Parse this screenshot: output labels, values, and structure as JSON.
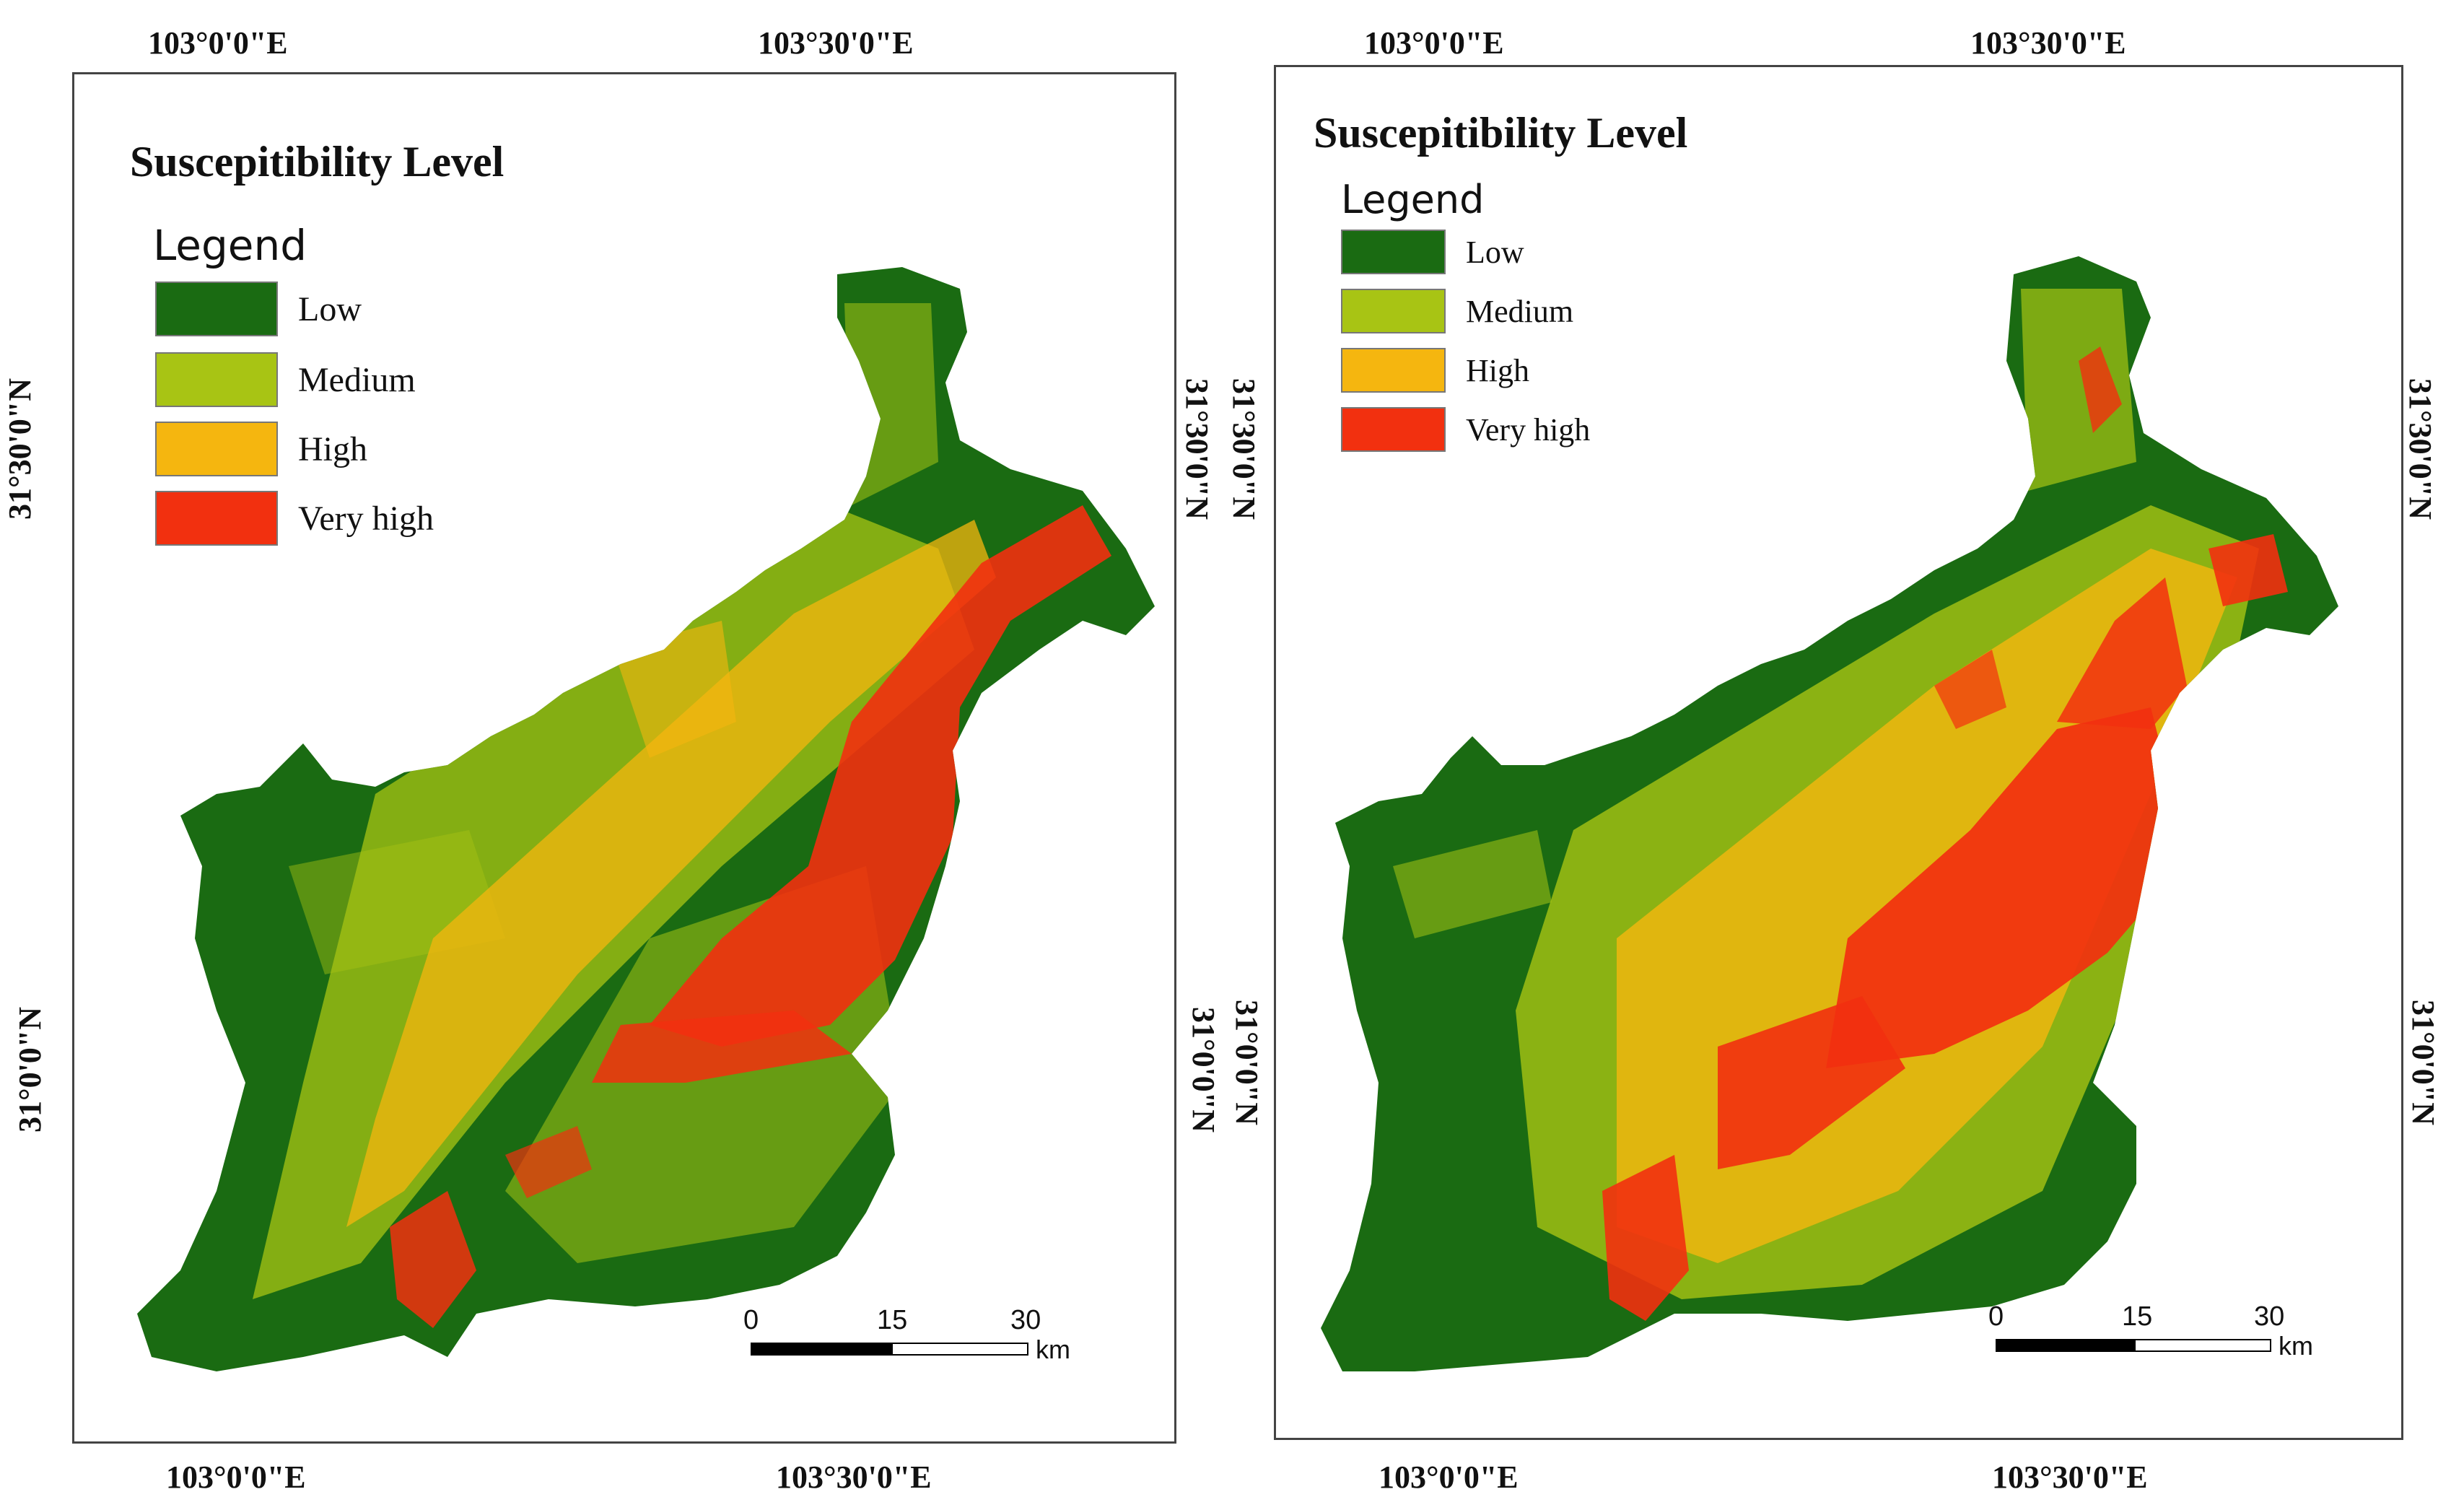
{
  "colors": {
    "low": "#1a6b12",
    "medium": "#a8c414",
    "high": "#f5b60f",
    "very_high": "#f2300f",
    "frame": "#444444"
  },
  "maps": [
    {
      "title": "Suscepitibility Level",
      "legend_title": "Legend",
      "legend": [
        {
          "label": "Low"
        },
        {
          "label": "Medium"
        },
        {
          "label": "High"
        },
        {
          "label": "Very high"
        }
      ],
      "top_ticks": [
        "103°0'0\"E",
        "103°30'0\"E"
      ],
      "bottom_ticks": [
        "103°0'0\"E",
        "103°30'0\"E"
      ],
      "left_ticks": [
        "31°30'0\"N",
        "31°0'0\"N"
      ],
      "right_ticks": [
        "31°30'0\"N",
        "31°0'0\"N"
      ],
      "scale": {
        "labels": [
          "0",
          "15",
          "30"
        ],
        "unit": "km"
      }
    },
    {
      "title": "Suscepitibility Level",
      "legend_title": "Legend",
      "legend": [
        {
          "label": "Low"
        },
        {
          "label": "Medium"
        },
        {
          "label": "High"
        },
        {
          "label": "Very high"
        }
      ],
      "top_ticks": [
        "103°0'0\"E",
        "103°30'0\"E"
      ],
      "bottom_ticks": [
        "103°0'0\"E",
        "103°30'0\"E"
      ],
      "left_ticks": [
        "31°30'0\"N",
        "31°0'0\"N"
      ],
      "right_ticks": [
        "31°30'0\"N",
        "31°0'0\"N"
      ],
      "scale": {
        "labels": [
          "0",
          "15",
          "30"
        ],
        "unit": "km"
      }
    }
  ]
}
